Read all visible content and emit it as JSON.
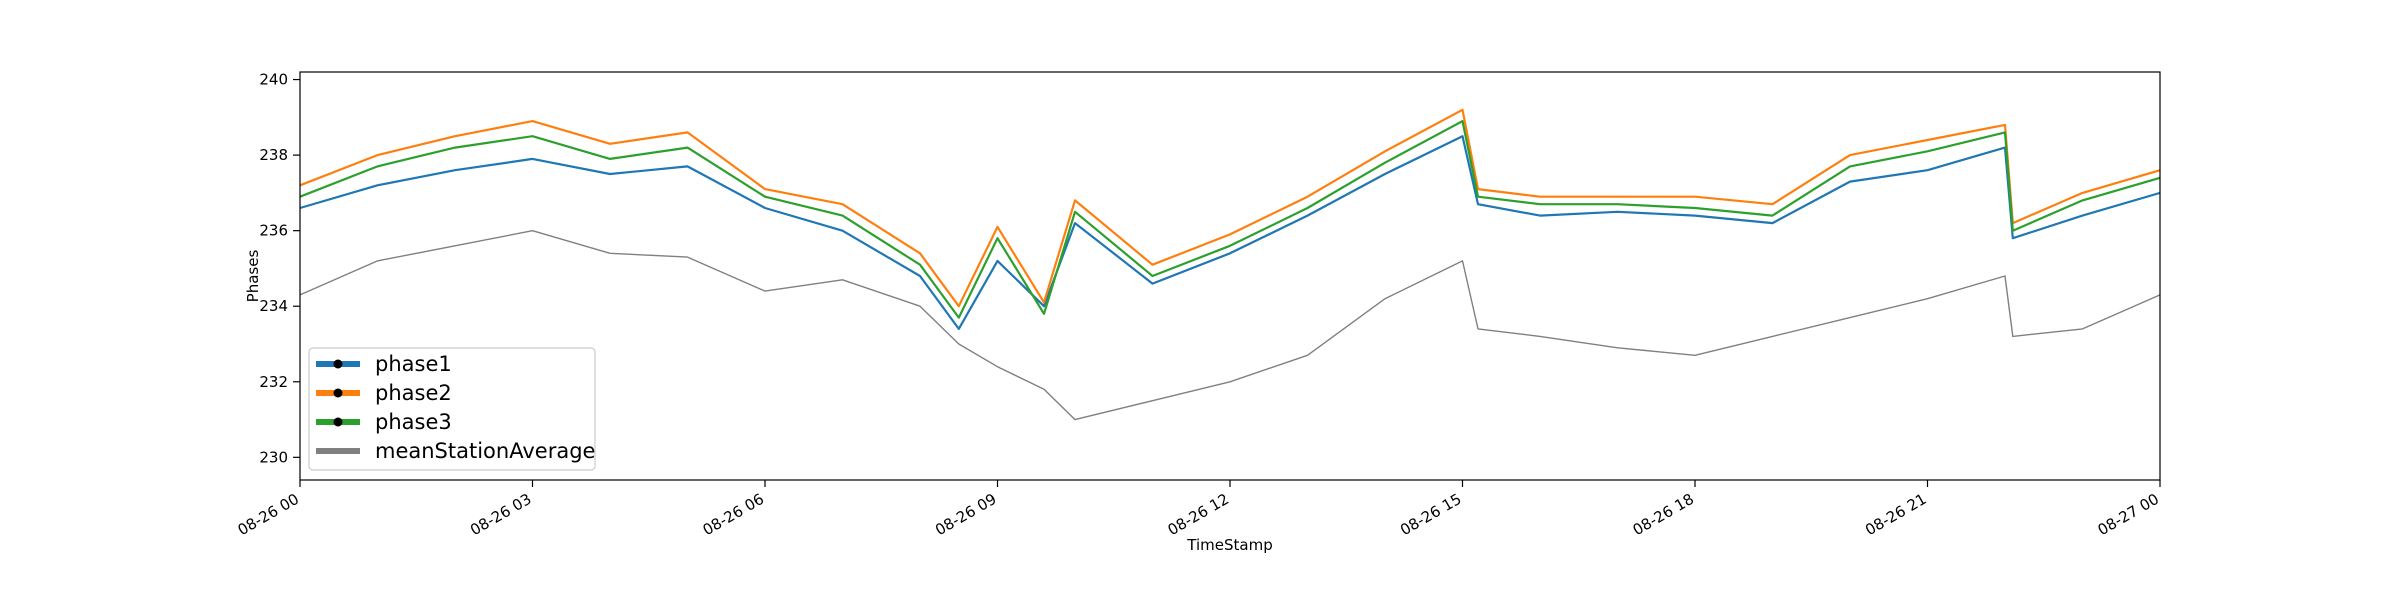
{
  "chart_data": {
    "type": "line",
    "xlabel": "TimeStamp",
    "ylabel": "Phases",
    "x_range": [
      "08-26 00",
      "08-27 00"
    ],
    "x_ticks": [
      "08-26 00",
      "08-26 03",
      "08-26 06",
      "08-26 09",
      "08-26 12",
      "08-26 15",
      "08-26 18",
      "08-26 21",
      "08-27 00"
    ],
    "ylim": [
      229.4,
      240.2
    ],
    "y_ticks": [
      230,
      232,
      234,
      236,
      238,
      240
    ],
    "grid": false,
    "legend_position": "lower-left",
    "x_hours": [
      0,
      1,
      2,
      3,
      4,
      5,
      6,
      7,
      8,
      8.5,
      9,
      9.6,
      10,
      11,
      12,
      13,
      14,
      15,
      15.2,
      16,
      17,
      18,
      19,
      20,
      21,
      22,
      22.1,
      23,
      24
    ],
    "series": [
      {
        "name": "phase1",
        "color": "#1f77b4",
        "marker": "black dot",
        "values": [
          236.6,
          237.2,
          237.6,
          237.9,
          237.5,
          237.7,
          236.6,
          236.0,
          234.8,
          233.4,
          235.2,
          234.0,
          236.2,
          234.6,
          235.4,
          236.4,
          237.5,
          238.5,
          236.7,
          236.4,
          236.5,
          236.4,
          236.2,
          237.3,
          237.6,
          238.2,
          235.8,
          236.4,
          237.0
        ]
      },
      {
        "name": "phase2",
        "color": "#ff7f0e",
        "marker": "black dot",
        "values": [
          237.2,
          238.0,
          238.5,
          238.9,
          238.3,
          238.6,
          237.1,
          236.7,
          235.4,
          234.0,
          236.1,
          234.1,
          236.8,
          235.1,
          235.9,
          236.9,
          238.1,
          239.2,
          237.1,
          236.9,
          236.9,
          236.9,
          236.7,
          238.0,
          238.4,
          238.8,
          236.2,
          237.0,
          237.6
        ]
      },
      {
        "name": "phase3",
        "color": "#2ca02c",
        "marker": "black dot",
        "values": [
          236.9,
          237.7,
          238.2,
          238.5,
          237.9,
          238.2,
          236.9,
          236.4,
          235.1,
          233.7,
          235.8,
          233.8,
          236.5,
          234.8,
          235.6,
          236.6,
          237.8,
          238.9,
          236.9,
          236.7,
          236.7,
          236.6,
          236.4,
          237.7,
          238.1,
          238.6,
          236.0,
          236.8,
          237.4
        ]
      },
      {
        "name": "meanStationAverage",
        "color": "#808080",
        "marker": "",
        "values": [
          234.3,
          235.2,
          235.6,
          236.0,
          235.4,
          235.3,
          234.4,
          234.7,
          234.0,
          233.0,
          232.4,
          231.8,
          231.0,
          231.5,
          232.0,
          232.7,
          234.2,
          235.2,
          233.4,
          233.2,
          232.9,
          232.7,
          233.2,
          233.7,
          234.2,
          234.8,
          233.2,
          233.4,
          234.3
        ]
      }
    ]
  }
}
